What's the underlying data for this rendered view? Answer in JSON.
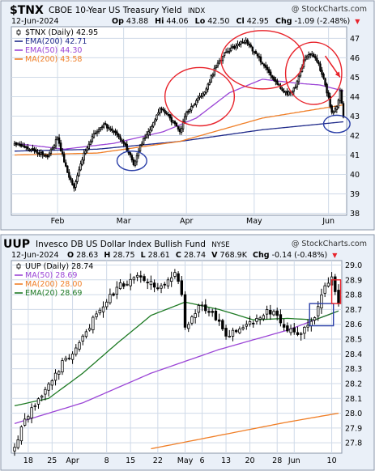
{
  "colors": {
    "frame_bg": "#eaf0f8",
    "plot_bg": "#ffffff",
    "grid": "#cfdae8",
    "border": "#8a96a8",
    "annotation_red": "#e8232b",
    "annotation_blue": "#2b3fa8",
    "up_bar": "#ffffff",
    "down_bar": "#000000",
    "neg_change": "#e8232b"
  },
  "chart_data": [
    {
      "type": "candlestick",
      "symbol": "$TNX",
      "title": "CBOE 10-Year US Treasury Yield",
      "exchange": "INDX",
      "date": "12-Jun-2024",
      "watermark": "@ StockCharts.com",
      "stats": {
        "op_label": "Op",
        "op": "43.88",
        "hi_label": "Hi",
        "hi": "44.06",
        "lo_label": "Lo",
        "lo": "42.50",
        "cl_label": "Cl",
        "cl": "42.95",
        "chg_label": "Chg",
        "chg": "-1.09 (-2.48%)",
        "chg_arrow": "▼"
      },
      "legend": [
        {
          "label": "$TNX (Daily) 42.95",
          "color": "#000000",
          "icon": "candle-icon"
        },
        {
          "label": "EMA(200) 42.71",
          "color": "#1f2a8a",
          "icon": "line-swatch"
        },
        {
          "label": "EMA(50) 44.30",
          "color": "#9b45d6",
          "icon": "line-swatch"
        },
        {
          "label": "MA(200) 43.58",
          "color": "#f07e26",
          "icon": "line-swatch"
        }
      ],
      "y_ticks": [
        "47",
        "46",
        "45",
        "44",
        "43",
        "42",
        "41",
        "40",
        "39",
        "38"
      ],
      "ylim": [
        37.9,
        47.6
      ],
      "x_ticks": [
        {
          "label": "Feb",
          "index": 26
        },
        {
          "label": "Mar",
          "index": 66
        },
        {
          "label": "Apr",
          "index": 104
        },
        {
          "label": "May",
          "index": 145
        },
        {
          "label": "Jun",
          "index": 190
        }
      ],
      "n_bars": 200,
      "key_bars": [
        [
          0,
          41.6
        ],
        [
          10,
          41.3
        ],
        [
          20,
          40.9
        ],
        [
          26,
          41.9
        ],
        [
          32,
          40.1
        ],
        [
          36,
          39.3
        ],
        [
          42,
          41.1
        ],
        [
          48,
          42.1
        ],
        [
          54,
          42.6
        ],
        [
          60,
          42.2
        ],
        [
          66,
          41.6
        ],
        [
          70,
          41.0
        ],
        [
          72,
          40.5
        ],
        [
          76,
          41.5
        ],
        [
          82,
          42.3
        ],
        [
          88,
          43.4
        ],
        [
          94,
          42.9
        ],
        [
          100,
          42.2
        ],
        [
          104,
          43.2
        ],
        [
          110,
          43.8
        ],
        [
          116,
          44.4
        ],
        [
          122,
          45.6
        ],
        [
          128,
          46.3
        ],
        [
          134,
          46.6
        ],
        [
          140,
          46.9
        ],
        [
          145,
          46.3
        ],
        [
          150,
          45.7
        ],
        [
          155,
          45.1
        ],
        [
          160,
          44.6
        ],
        [
          165,
          44.1
        ],
        [
          170,
          44.5
        ],
        [
          175,
          45.9
        ],
        [
          180,
          46.2
        ],
        [
          184,
          45.7
        ],
        [
          188,
          44.6
        ],
        [
          192,
          43.2
        ],
        [
          195,
          43.5
        ],
        [
          197,
          44.3
        ],
        [
          199,
          42.95
        ]
      ],
      "series": [
        {
          "name": "EMA(200)",
          "color": "#1f2a8a",
          "points": [
            [
              0,
              41.2
            ],
            [
              50,
              41.3
            ],
            [
              100,
              41.7
            ],
            [
              150,
              42.3
            ],
            [
              199,
              42.71
            ]
          ]
        },
        {
          "name": "EMA(50)",
          "color": "#9b45d6",
          "points": [
            [
              0,
              41.6
            ],
            [
              30,
              41.3
            ],
            [
              60,
              41.6
            ],
            [
              90,
              42.2
            ],
            [
              110,
              42.9
            ],
            [
              130,
              44.2
            ],
            [
              150,
              44.9
            ],
            [
              170,
              44.7
            ],
            [
              185,
              44.6
            ],
            [
              199,
              44.3
            ]
          ]
        },
        {
          "name": "MA(200)",
          "color": "#f07e26",
          "points": [
            [
              0,
              41.0
            ],
            [
              50,
              41.1
            ],
            [
              100,
              41.7
            ],
            [
              150,
              42.9
            ],
            [
              199,
              43.58
            ]
          ]
        }
      ],
      "annotations": [
        {
          "kind": "ellipse",
          "color": "#2b3fa8",
          "cx": 71,
          "cy": 40.7,
          "rx": 9,
          "ry": 0.5
        },
        {
          "kind": "ellipse",
          "color": "#e8232b",
          "cx": 112,
          "cy": 44.0,
          "rx": 21,
          "ry": 1.5
        },
        {
          "kind": "ellipse",
          "color": "#e8232b",
          "cx": 150,
          "cy": 45.9,
          "rx": 25,
          "ry": 1.5
        },
        {
          "kind": "ellipse",
          "color": "#e8232b",
          "cx": 181,
          "cy": 45.2,
          "rx": 17,
          "ry": 1.6
        },
        {
          "kind": "ellipse",
          "color": "#2b3fa8",
          "cx": 195,
          "cy": 42.6,
          "rx": 8,
          "ry": 0.45
        },
        {
          "kind": "arrow",
          "color": "#e8232b",
          "x1": 188,
          "y1": 46.1,
          "x2": 197,
          "y2": 45.0
        }
      ]
    },
    {
      "type": "candlestick",
      "symbol": "UUP",
      "title": "Invesco DB US Dollar Index Bullish Fund",
      "exchange": "NYSE",
      "date": "12-Jun-2024",
      "watermark": "@ StockCharts.com",
      "stats": {
        "op_label": "O",
        "op": "28.63",
        "hi_label": "H",
        "hi": "28.75",
        "lo_label": "L",
        "lo": "28.61",
        "cl_label": "C",
        "cl": "28.74",
        "vol_label": "V",
        "vol": "768.9K",
        "chg_label": "Chg",
        "chg": "-0.14 (-0.48%)",
        "chg_arrow": "▼"
      },
      "legend": [
        {
          "label": "UUP (Daily) 28.74",
          "color": "#000000",
          "icon": "candle-icon"
        },
        {
          "label": "MA(50) 28.69",
          "color": "#9b45d6",
          "icon": "line-swatch"
        },
        {
          "label": "MA(200) 28.00",
          "color": "#f07e26",
          "icon": "line-swatch"
        },
        {
          "label": "EMA(20) 28.69",
          "color": "#1e7a24",
          "icon": "line-swatch"
        }
      ],
      "y_ticks": [
        "29.0",
        "28.9",
        "28.8",
        "28.7",
        "28.6",
        "28.5",
        "28.4",
        "28.3",
        "28.2",
        "28.1",
        "28.0",
        "27.9",
        "27.8"
      ],
      "ylim": [
        27.73,
        29.03
      ],
      "x_ticks": [
        {
          "label": "18",
          "index": 4
        },
        {
          "label": "25",
          "index": 11
        },
        {
          "label": "Apr",
          "index": 17
        },
        {
          "label": "8",
          "index": 27
        },
        {
          "label": "15",
          "index": 34
        },
        {
          "label": "22",
          "index": 42
        },
        {
          "label": "May",
          "index": 50
        },
        {
          "label": "6",
          "index": 55
        },
        {
          "label": "13",
          "index": 62
        },
        {
          "label": "20",
          "index": 69
        },
        {
          "label": "28",
          "index": 77
        },
        {
          "label": "Jun",
          "index": 82
        },
        {
          "label": "10",
          "index": 93
        }
      ],
      "n_bars": 96,
      "key_bars": [
        [
          0,
          27.77
        ],
        [
          3,
          27.96
        ],
        [
          6,
          28.05
        ],
        [
          9,
          28.16
        ],
        [
          12,
          28.27
        ],
        [
          15,
          28.37
        ],
        [
          18,
          28.44
        ],
        [
          21,
          28.55
        ],
        [
          24,
          28.67
        ],
        [
          27,
          28.75
        ],
        [
          30,
          28.85
        ],
        [
          33,
          28.87
        ],
        [
          36,
          28.93
        ],
        [
          39,
          28.88
        ],
        [
          42,
          28.84
        ],
        [
          45,
          28.9
        ],
        [
          47,
          28.95
        ],
        [
          49,
          28.8
        ],
        [
          50,
          28.58
        ],
        [
          52,
          28.65
        ],
        [
          55,
          28.73
        ],
        [
          57,
          28.68
        ],
        [
          60,
          28.62
        ],
        [
          62,
          28.52
        ],
        [
          65,
          28.55
        ],
        [
          68,
          28.6
        ],
        [
          71,
          28.64
        ],
        [
          74,
          28.7
        ],
        [
          77,
          28.66
        ],
        [
          79,
          28.58
        ],
        [
          81,
          28.57
        ],
        [
          83,
          28.53
        ],
        [
          85,
          28.58
        ],
        [
          87,
          28.62
        ],
        [
          89,
          28.72
        ],
        [
          91,
          28.86
        ],
        [
          93,
          28.92
        ],
        [
          95,
          28.74
        ]
      ],
      "series": [
        {
          "name": "MA(50)",
          "color": "#9b45d6",
          "points": [
            [
              0,
              27.93
            ],
            [
              20,
              28.07
            ],
            [
              40,
              28.27
            ],
            [
              60,
              28.43
            ],
            [
              80,
              28.56
            ],
            [
              95,
              28.69
            ]
          ]
        },
        {
          "name": "MA(200)",
          "color": "#f07e26",
          "points": [
            [
              40,
              27.76
            ],
            [
              60,
              27.85
            ],
            [
              80,
              27.94
            ],
            [
              95,
              28.0
            ]
          ]
        },
        {
          "name": "EMA(20)",
          "color": "#1e7a24",
          "points": [
            [
              0,
              28.05
            ],
            [
              10,
              28.1
            ],
            [
              20,
              28.27
            ],
            [
              30,
              28.47
            ],
            [
              40,
              28.66
            ],
            [
              50,
              28.75
            ],
            [
              60,
              28.7
            ],
            [
              70,
              28.63
            ],
            [
              80,
              28.64
            ],
            [
              88,
              28.63
            ],
            [
              95,
              28.69
            ]
          ]
        }
      ],
      "annotations": [
        {
          "kind": "rect",
          "color": "#2b3fa8",
          "x1": 86.5,
          "y1": 28.74,
          "x2": 93.5,
          "y2": 28.59
        },
        {
          "kind": "rect",
          "color": "#e8232b",
          "x1": 93,
          "y1": 28.9,
          "x2": 95.6,
          "y2": 28.74
        }
      ]
    }
  ]
}
